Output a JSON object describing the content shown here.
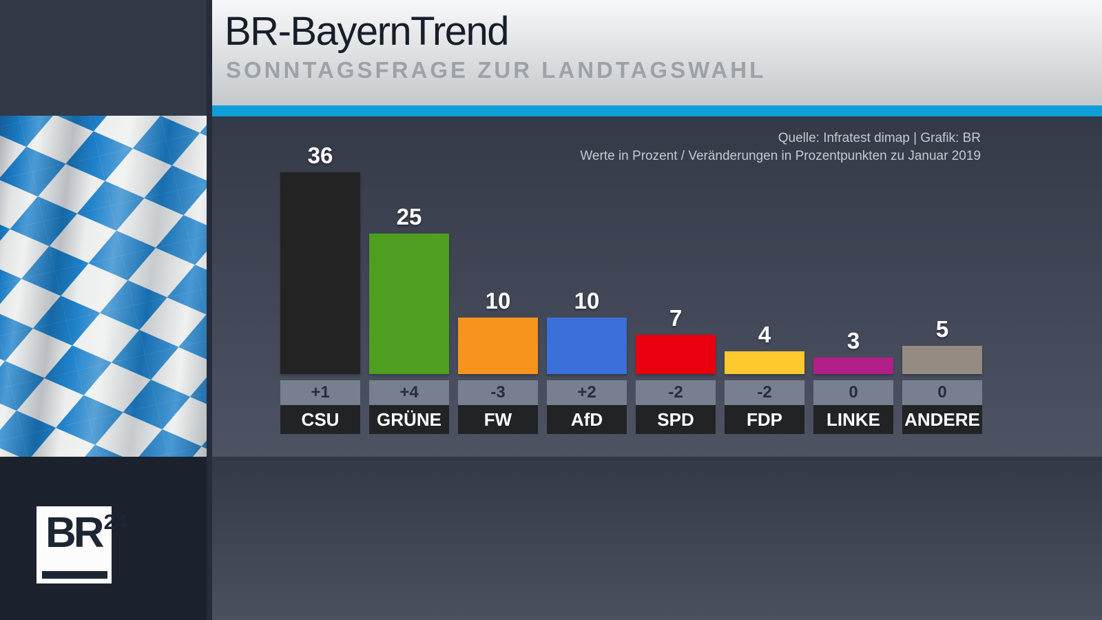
{
  "header": {
    "title": "BR-BayernTrend",
    "subtitle": "SONNTAGSFRAGE ZUR LANDTAGSWAHL"
  },
  "source": {
    "line1": "Quelle: Infratest dimap | Grafik: BR",
    "line2": "Werte in Prozent / Veränderungen in Prozentpunkten zu Januar 2019"
  },
  "logo": {
    "text": "BR",
    "superscript": "24"
  },
  "colors": {
    "accent_stripe": "#0f9fd8",
    "chart_bg_top": "#343a48",
    "chart_bg_bottom": "#4e5364",
    "change_box_bg": "#78808f",
    "party_box_bg": "#212325",
    "flag_blue": "#1a7fc9",
    "flag_white": "#eceeed"
  },
  "chart_data": {
    "type": "bar",
    "title": "Sonntagsfrage zur Landtagswahl",
    "unit": "Prozent",
    "ylim": [
      0,
      40
    ],
    "grid": false,
    "legend": "none",
    "categories": [
      "CSU",
      "GRÜNE",
      "FW",
      "AfD",
      "SPD",
      "FDP",
      "LINKE",
      "ANDERE"
    ],
    "values": [
      36,
      25,
      10,
      10,
      7,
      4,
      3,
      5
    ],
    "changes": [
      "+1",
      "+4",
      "-3",
      "+2",
      "-2",
      "-2",
      "0",
      "0"
    ],
    "parties": [
      {
        "name": "CSU",
        "value": 36,
        "change": "+1",
        "color": "#232323"
      },
      {
        "name": "GRÜNE",
        "value": 25,
        "change": "+4",
        "color": "#4f9e1f"
      },
      {
        "name": "FW",
        "value": 10,
        "change": "-3",
        "color": "#f7941d"
      },
      {
        "name": "AfD",
        "value": 10,
        "change": "+2",
        "color": "#3b6fd9"
      },
      {
        "name": "SPD",
        "value": 7,
        "change": "-2",
        "color": "#e8000e"
      },
      {
        "name": "FDP",
        "value": 4,
        "change": "-2",
        "color": "#fdc92e"
      },
      {
        "name": "LINKE",
        "value": 3,
        "change": "0",
        "color": "#b21f86"
      },
      {
        "name": "ANDERE",
        "value": 5,
        "change": "0",
        "color": "#948b82"
      }
    ]
  }
}
